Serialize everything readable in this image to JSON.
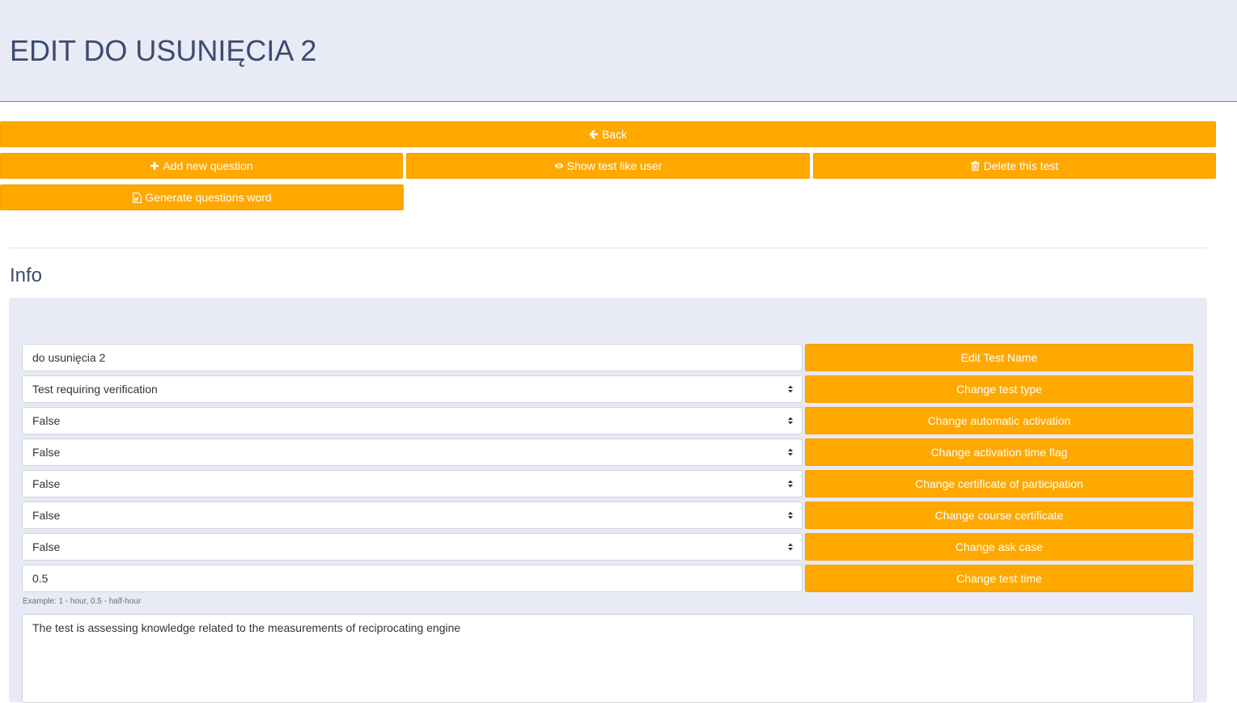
{
  "header": {
    "title": "EDIT DO USUNIĘCIA 2"
  },
  "actions": {
    "back_label": "Back",
    "add_question_label": "Add new question",
    "show_test_label": "Show test like user",
    "delete_test_label": "Delete this test",
    "generate_word_label": "Generate questions word"
  },
  "info": {
    "title": "Info",
    "rows": [
      {
        "value": "do usunięcia 2",
        "button": "Edit Test Name",
        "kind": "input"
      },
      {
        "value": "Test requiring verification",
        "button": "Change test type",
        "kind": "select"
      },
      {
        "value": "False",
        "button": "Change automatic activation",
        "kind": "select"
      },
      {
        "value": "False",
        "button": "Change activation time flag",
        "kind": "select"
      },
      {
        "value": "False",
        "button": "Change certificate of participation",
        "kind": "select"
      },
      {
        "value": "False",
        "button": "Change course certificate",
        "kind": "select"
      },
      {
        "value": "False",
        "button": "Change ask case",
        "kind": "select"
      },
      {
        "value": "0.5",
        "button": "Change test time",
        "kind": "input"
      }
    ],
    "time_hint": "Example: 1 - hour, 0.5 - half-hour",
    "description": "The test is assessing knowledge related to the measurements of reciprocating engine"
  },
  "colors": {
    "accent": "#ffa800",
    "header_bg": "#e8ebf5",
    "title": "#3c4b70"
  },
  "icons": {
    "back": "arrow-left-icon",
    "add": "plus-icon",
    "show": "eye-icon",
    "delete": "trash-icon",
    "word": "word-file-icon"
  }
}
